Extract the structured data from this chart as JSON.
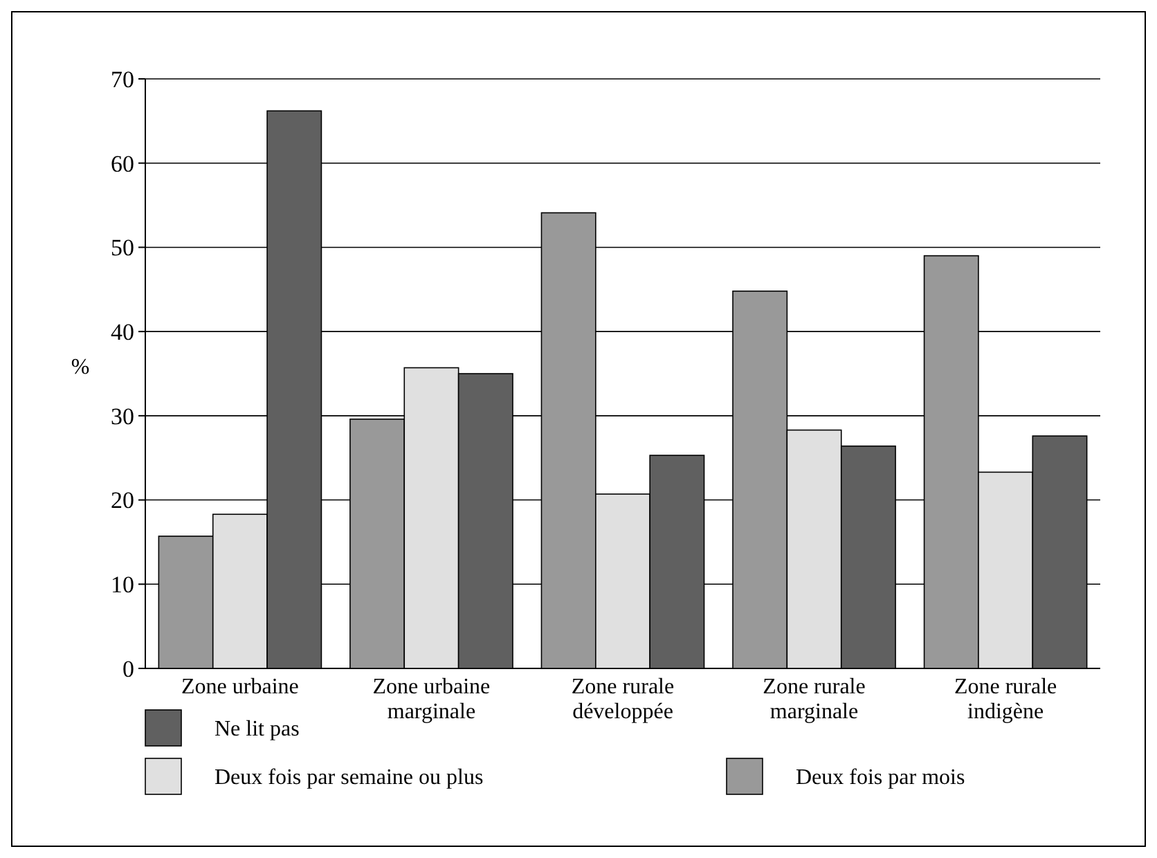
{
  "chart_data": {
    "type": "bar",
    "ylabel": "%",
    "categories": [
      "Zone urbaine",
      "Zone urbaine marginale",
      "Zone rurale développée",
      "Zone rurale marginale",
      "Zone rurale indigène"
    ],
    "series": [
      {
        "name": "Deux fois par mois",
        "color": "#999999",
        "values": [
          15.7,
          29.6,
          54.1,
          44.8,
          49.0
        ]
      },
      {
        "name": "Deux fois par semaine ou plus",
        "color": "#e0e0e0",
        "values": [
          18.3,
          35.7,
          20.7,
          28.3,
          23.3
        ]
      },
      {
        "name": "Ne lit pas",
        "color": "#606060",
        "values": [
          66.2,
          35.0,
          25.3,
          26.4,
          27.6
        ]
      }
    ],
    "ylim": [
      0,
      70
    ],
    "yticks": [
      0,
      10,
      20,
      30,
      40,
      50,
      60,
      70
    ],
    "grid": "y",
    "legend": "bottom"
  }
}
